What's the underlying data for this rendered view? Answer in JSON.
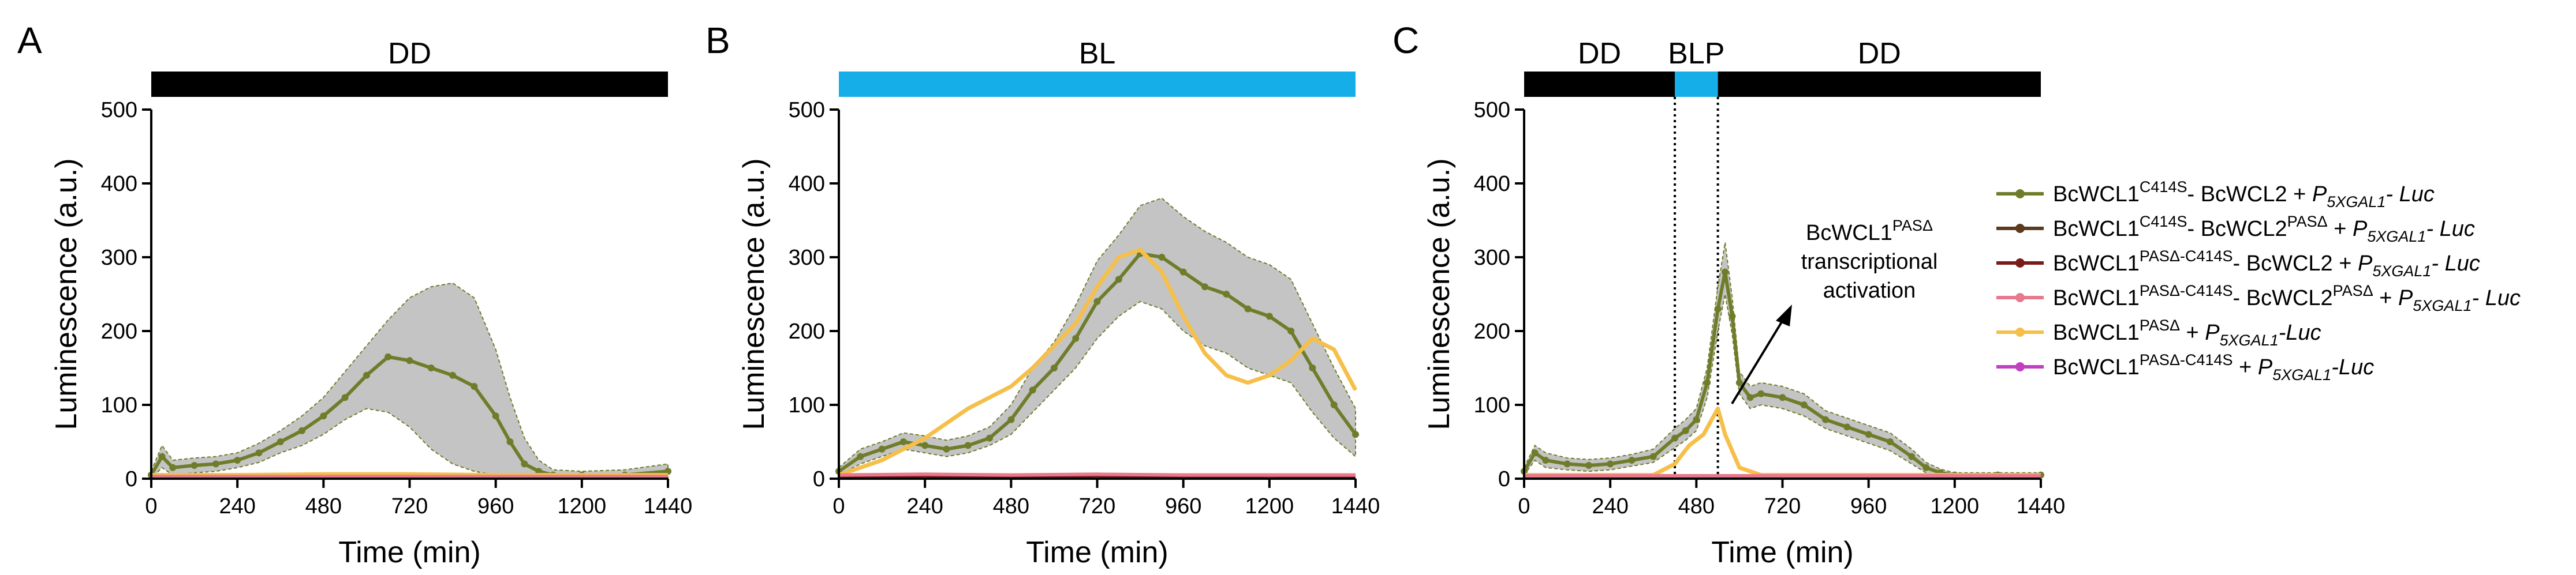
{
  "colors": {
    "green": "#6f7d2b",
    "brown": "#5b3a1e",
    "darkred": "#7a1a1a",
    "pink": "#e8788e",
    "orange": "#f5bf4a",
    "magenta": "#c040c0",
    "ribbon": "#c4c4c4",
    "black_bar": "#000000",
    "blue_bar": "#16aee8"
  },
  "legend": [
    {
      "key": "green",
      "pre": "BcWCL1",
      "sup": "C414S",
      "mid": "- BcWCL2 + ",
      "P": "P",
      "sub": "5XGAL1",
      "post": "- Luc"
    },
    {
      "key": "brown",
      "pre": "BcWCL1",
      "sup": "C414S",
      "mid": "- BcWCL2",
      "sup2": "PASΔ",
      "mid2": " + ",
      "P": "P",
      "sub": "5XGAL1",
      "post": "- Luc"
    },
    {
      "key": "darkred",
      "pre": "BcWCL1",
      "sup": "PASΔ-C414S",
      "mid": "- BcWCL2 + ",
      "P": "P",
      "sub": "5XGAL1",
      "post": "- Luc"
    },
    {
      "key": "pink",
      "pre": "BcWCL1",
      "sup": "PASΔ-C414S",
      "mid": "- BcWCL2",
      "sup2": "PASΔ",
      "mid2": " + ",
      "P": "P",
      "sub": "5XGAL1",
      "post": "- Luc"
    },
    {
      "key": "orange",
      "pre": "BcWCL1",
      "sup": "PASΔ",
      "mid": " + ",
      "P": "P",
      "sub": "5XGAL1",
      "post": "-Luc"
    },
    {
      "key": "magenta",
      "pre": "BcWCL1",
      "sup": "PASΔ-C414S",
      "mid": " + ",
      "P": "P",
      "sub": "5XGAL1",
      "post": "-Luc"
    }
  ],
  "annotation": {
    "line1_pre": "BcWCL1",
    "line1_sup": "PASΔ",
    "line2": "transcriptional",
    "line3": "activation"
  },
  "chart_data": [
    {
      "panel": "A",
      "type": "line",
      "condition_bars": [
        {
          "label": "DD",
          "from": 0,
          "to": 1440,
          "color": "black"
        }
      ],
      "xlabel": "Time (min)",
      "ylabel": "Luminescence (a.u.)",
      "xlim": [
        0,
        1440
      ],
      "ylim": [
        0,
        500
      ],
      "xticks": [
        0,
        240,
        480,
        720,
        960,
        1200,
        1440
      ],
      "yticks": [
        0,
        100,
        200,
        300,
        400,
        500
      ],
      "series": [
        {
          "key": "green",
          "x": [
            0,
            30,
            60,
            120,
            180,
            240,
            300,
            360,
            420,
            480,
            540,
            600,
            660,
            720,
            780,
            840,
            900,
            960,
            1000,
            1040,
            1080,
            1120,
            1200,
            1320,
            1440
          ],
          "y": [
            5,
            30,
            15,
            18,
            20,
            25,
            35,
            50,
            65,
            85,
            110,
            140,
            165,
            160,
            150,
            140,
            125,
            85,
            50,
            20,
            10,
            5,
            5,
            5,
            10
          ],
          "lower": [
            0,
            15,
            5,
            8,
            10,
            15,
            22,
            35,
            45,
            60,
            80,
            95,
            90,
            70,
            40,
            20,
            10,
            5,
            2,
            0,
            0,
            0,
            0,
            0,
            0
          ],
          "upper": [
            10,
            45,
            25,
            28,
            30,
            35,
            48,
            65,
            85,
            110,
            145,
            180,
            215,
            245,
            260,
            265,
            245,
            175,
            110,
            55,
            25,
            12,
            10,
            12,
            20
          ]
        },
        {
          "key": "orange",
          "x": [
            0,
            240,
            480,
            720,
            960,
            1200,
            1440
          ],
          "y": [
            5,
            5,
            6,
            6,
            5,
            5,
            5
          ]
        },
        {
          "key": "darkred",
          "x": [
            0,
            240,
            480,
            720,
            960,
            1200,
            1440
          ],
          "y": [
            2,
            2,
            2,
            2,
            2,
            2,
            2
          ]
        },
        {
          "key": "pink",
          "x": [
            0,
            240,
            480,
            720,
            960,
            1200,
            1440
          ],
          "y": [
            3,
            3,
            3,
            3,
            3,
            3,
            3
          ]
        }
      ]
    },
    {
      "panel": "B",
      "type": "line",
      "condition_bars": [
        {
          "label": "BL",
          "from": 0,
          "to": 1440,
          "color": "blue"
        }
      ],
      "xlabel": "Time (min)",
      "ylabel": "Luminescence (a.u.)",
      "xlim": [
        0,
        1440
      ],
      "ylim": [
        0,
        500
      ],
      "xticks": [
        0,
        240,
        480,
        720,
        960,
        1200,
        1440
      ],
      "yticks": [
        0,
        100,
        200,
        300,
        400,
        500
      ],
      "series": [
        {
          "key": "green",
          "x": [
            0,
            60,
            120,
            180,
            240,
            300,
            360,
            420,
            480,
            540,
            600,
            660,
            720,
            780,
            840,
            900,
            960,
            1020,
            1080,
            1140,
            1200,
            1260,
            1320,
            1380,
            1440
          ],
          "y": [
            10,
            30,
            40,
            50,
            45,
            40,
            45,
            55,
            80,
            120,
            150,
            190,
            240,
            270,
            305,
            300,
            280,
            260,
            250,
            230,
            220,
            200,
            150,
            100,
            60
          ],
          "lower": [
            5,
            20,
            30,
            40,
            35,
            30,
            35,
            45,
            60,
            90,
            120,
            150,
            190,
            220,
            240,
            230,
            200,
            180,
            170,
            150,
            140,
            130,
            90,
            55,
            30
          ],
          "upper": [
            15,
            40,
            50,
            62,
            58,
            52,
            58,
            70,
            100,
            150,
            185,
            235,
            295,
            330,
            370,
            380,
            355,
            335,
            320,
            300,
            290,
            270,
            210,
            150,
            95
          ]
        },
        {
          "key": "orange",
          "x": [
            0,
            60,
            120,
            180,
            240,
            300,
            360,
            420,
            480,
            540,
            600,
            660,
            720,
            780,
            840,
            900,
            960,
            1020,
            1080,
            1140,
            1200,
            1260,
            1320,
            1380,
            1440
          ],
          "y": [
            5,
            15,
            25,
            40,
            55,
            75,
            95,
            110,
            125,
            150,
            180,
            210,
            260,
            300,
            310,
            280,
            220,
            170,
            140,
            130,
            140,
            160,
            190,
            175,
            120
          ]
        },
        {
          "key": "darkred",
          "x": [
            0,
            240,
            480,
            720,
            960,
            1200,
            1440
          ],
          "y": [
            3,
            4,
            3,
            4,
            3,
            4,
            3
          ]
        },
        {
          "key": "pink",
          "x": [
            0,
            240,
            480,
            720,
            960,
            1200,
            1440
          ],
          "y": [
            5,
            6,
            5,
            6,
            5,
            5,
            5
          ]
        }
      ]
    },
    {
      "panel": "C",
      "type": "line",
      "condition_bars": [
        {
          "label": "DD",
          "from": 0,
          "to": 420,
          "color": "black"
        },
        {
          "label": "BLP",
          "from": 420,
          "to": 540,
          "color": "blue"
        },
        {
          "label": "DD",
          "from": 540,
          "to": 1440,
          "color": "black"
        }
      ],
      "vlines": [
        420,
        540
      ],
      "xlabel": "Time (min)",
      "ylabel": "Luminescence (a.u.)",
      "xlim": [
        0,
        1440
      ],
      "ylim": [
        0,
        500
      ],
      "xticks": [
        0,
        240,
        480,
        720,
        960,
        1200,
        1440
      ],
      "yticks": [
        0,
        100,
        200,
        300,
        400,
        500
      ],
      "series": [
        {
          "key": "green",
          "x": [
            0,
            30,
            60,
            120,
            180,
            240,
            300,
            360,
            420,
            450,
            480,
            510,
            540,
            560,
            580,
            600,
            630,
            660,
            720,
            780,
            840,
            900,
            960,
            1020,
            1080,
            1120,
            1160,
            1200,
            1320,
            1440
          ],
          "y": [
            10,
            35,
            25,
            20,
            18,
            20,
            25,
            30,
            55,
            65,
            80,
            130,
            230,
            280,
            220,
            130,
            110,
            115,
            110,
            100,
            80,
            70,
            60,
            50,
            30,
            15,
            8,
            5,
            5,
            5
          ],
          "lower": [
            5,
            25,
            15,
            12,
            10,
            12,
            17,
            22,
            42,
            52,
            65,
            110,
            200,
            250,
            195,
            115,
            95,
            100,
            95,
            85,
            68,
            58,
            48,
            38,
            20,
            8,
            3,
            2,
            2,
            2
          ],
          "upper": [
            15,
            45,
            35,
            28,
            26,
            28,
            33,
            40,
            68,
            80,
            95,
            150,
            260,
            320,
            245,
            145,
            125,
            130,
            125,
            115,
            92,
            82,
            72,
            62,
            40,
            22,
            13,
            8,
            8,
            8
          ]
        },
        {
          "key": "orange",
          "x": [
            0,
            120,
            240,
            360,
            420,
            460,
            500,
            540,
            560,
            600,
            660,
            720,
            960,
            1200,
            1440
          ],
          "y": [
            5,
            5,
            5,
            5,
            20,
            45,
            60,
            95,
            60,
            15,
            5,
            5,
            5,
            5,
            5
          ]
        },
        {
          "key": "darkred",
          "x": [
            0,
            240,
            480,
            720,
            960,
            1200,
            1440
          ],
          "y": [
            2,
            2,
            2,
            2,
            2,
            2,
            2
          ]
        },
        {
          "key": "pink",
          "x": [
            0,
            240,
            480,
            720,
            960,
            1200,
            1440
          ],
          "y": [
            4,
            4,
            4,
            4,
            4,
            4,
            4
          ]
        }
      ]
    }
  ]
}
